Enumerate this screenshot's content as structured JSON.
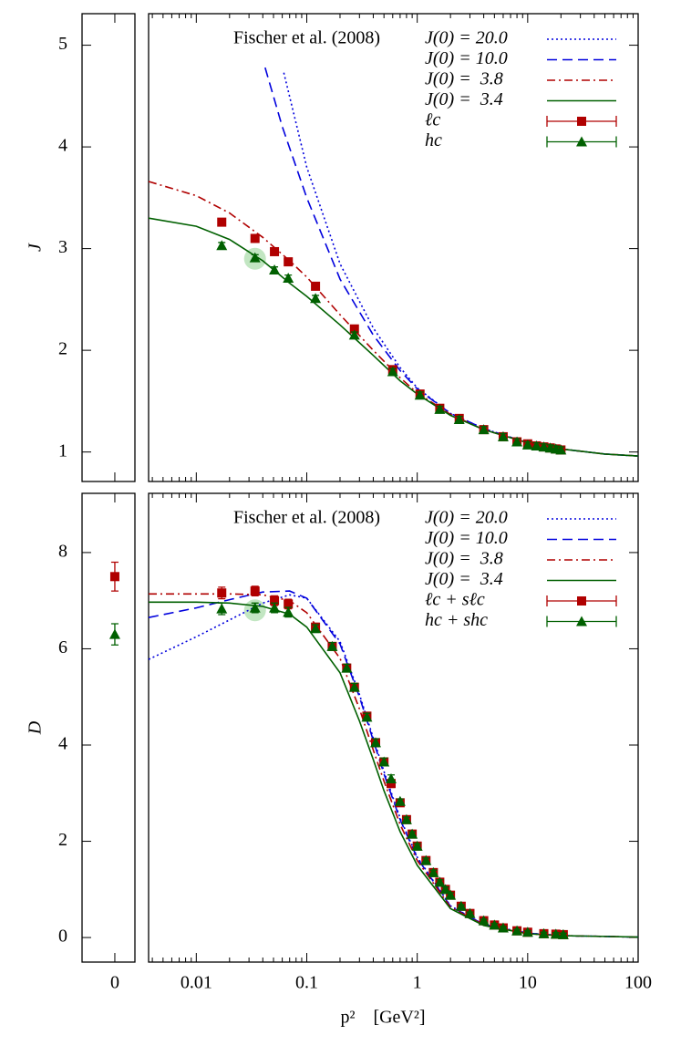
{
  "chart_data": [
    {
      "type": "line",
      "ylabel": "J",
      "legend_title": "Fischer et al. (2008)",
      "legend": "upper right",
      "xlog": true,
      "xlim": [
        0.0037,
        100
      ],
      "xticks": [
        0.01,
        0.1,
        1,
        10,
        100
      ],
      "show_xtick_labels": false,
      "x0lim": [
        -0.62,
        0.38
      ],
      "x0ticks": [
        0
      ],
      "ylim": [
        0.71,
        5.31
      ],
      "yticks": [
        1,
        2,
        3,
        4,
        5
      ],
      "highlight": {
        "x": 0.034,
        "y": 2.9,
        "color": "#a8dca8"
      },
      "series": [
        {
          "name": "J(0) = 20.0",
          "color": "#0000dd",
          "style": "dotted",
          "x": [
            0.062,
            0.1,
            0.2,
            0.4,
            0.7,
            1,
            2,
            4,
            10,
            20,
            50,
            100
          ],
          "values": [
            4.73,
            3.8,
            2.85,
            2.22,
            1.83,
            1.63,
            1.38,
            1.23,
            1.09,
            1.03,
            0.98,
            0.96
          ]
        },
        {
          "name": "J(0) = 10.0",
          "color": "#0000dd",
          "style": "dashed",
          "x": [
            0.042,
            0.06,
            0.1,
            0.2,
            0.4,
            0.7,
            1,
            2,
            4,
            10,
            20,
            50,
            100
          ],
          "values": [
            4.78,
            4.2,
            3.5,
            2.7,
            2.15,
            1.8,
            1.62,
            1.38,
            1.23,
            1.09,
            1.03,
            0.98,
            0.96
          ]
        },
        {
          "name": "J(0) =  3.8",
          "color": "#b00000",
          "style": "dashdot",
          "x": [
            0.0037,
            0.01,
            0.02,
            0.04,
            0.07,
            0.1,
            0.2,
            0.4,
            0.7,
            1,
            2,
            4,
            10,
            20,
            50,
            100
          ],
          "values": [
            3.66,
            3.52,
            3.35,
            3.11,
            2.88,
            2.72,
            2.35,
            2.0,
            1.73,
            1.58,
            1.37,
            1.22,
            1.09,
            1.03,
            0.98,
            0.96
          ]
        },
        {
          "name": "J(0) =  3.4",
          "color": "#006000",
          "style": "solid",
          "x": [
            0.0037,
            0.01,
            0.02,
            0.04,
            0.07,
            0.1,
            0.2,
            0.4,
            0.7,
            1,
            2,
            4,
            10,
            20,
            50,
            100
          ],
          "values": [
            3.3,
            3.22,
            3.09,
            2.88,
            2.66,
            2.53,
            2.25,
            1.95,
            1.7,
            1.57,
            1.36,
            1.22,
            1.09,
            1.03,
            0.98,
            0.96
          ]
        },
        {
          "name": "ℓc",
          "color": "#b00000",
          "marker": "square",
          "x": [
            0.017,
            0.034,
            0.051,
            0.068,
            0.12,
            0.27,
            0.6,
            1.06,
            1.6,
            2.4,
            4,
            6,
            8,
            10,
            12,
            14,
            16,
            18,
            20
          ],
          "values": [
            3.26,
            3.1,
            2.97,
            2.87,
            2.63,
            2.21,
            1.81,
            1.57,
            1.43,
            1.33,
            1.22,
            1.15,
            1.1,
            1.08,
            1.06,
            1.05,
            1.04,
            1.03,
            1.02
          ],
          "errors": [
            0.03,
            0.03,
            0.03,
            0.03,
            0.03,
            0.03,
            0.03,
            0.03,
            0.03,
            0.03,
            0.03,
            0.03,
            0.03,
            0.03,
            0.03,
            0.03,
            0.03,
            0.03,
            0.03
          ]
        },
        {
          "name": "hc",
          "color": "#006000",
          "marker": "triangle",
          "x": [
            0.017,
            0.034,
            0.051,
            0.068,
            0.12,
            0.27,
            0.6,
            1.06,
            1.6,
            2.4,
            4,
            6,
            8,
            10,
            12,
            14,
            16,
            18,
            20
          ],
          "values": [
            3.03,
            2.91,
            2.79,
            2.71,
            2.51,
            2.15,
            1.79,
            1.56,
            1.42,
            1.32,
            1.22,
            1.15,
            1.1,
            1.07,
            1.06,
            1.05,
            1.04,
            1.03,
            1.02
          ],
          "errors": [
            0.03,
            0.03,
            0.03,
            0.03,
            0.03,
            0.03,
            0.03,
            0.03,
            0.03,
            0.03,
            0.03,
            0.03,
            0.03,
            0.03,
            0.03,
            0.03,
            0.03,
            0.03,
            0.03
          ]
        }
      ]
    },
    {
      "type": "line",
      "ylabel": "D",
      "xlabel": "p²    [GeV²]",
      "legend_title": "Fischer et al. (2008)",
      "legend": "upper right",
      "xlog": true,
      "xlim": [
        0.0037,
        100
      ],
      "xticks": [
        0.01,
        0.1,
        1,
        10,
        100
      ],
      "show_xtick_labels": true,
      "x0lim": [
        -0.62,
        0.38
      ],
      "x0ticks": [
        0
      ],
      "ylim": [
        -0.51,
        9.23
      ],
      "yticks": [
        0,
        2,
        4,
        6,
        8
      ],
      "highlight": {
        "x": 0.034,
        "y": 6.8,
        "color": "#a8dca8"
      },
      "series": [
        {
          "name": "J(0) = 20.0",
          "color": "#0000dd",
          "style": "dotted",
          "x": [
            0.0037,
            0.01,
            0.02,
            0.04,
            0.07,
            0.1,
            0.2,
            0.3,
            0.4,
            0.5,
            0.7,
            1,
            2,
            4,
            10,
            20,
            100
          ],
          "values": [
            5.78,
            6.25,
            6.6,
            6.95,
            7.12,
            7.05,
            6.15,
            5.05,
            4.15,
            3.45,
            2.48,
            1.67,
            0.66,
            0.27,
            0.09,
            0.04,
            0.01
          ]
        },
        {
          "name": "J(0) = 10.0",
          "color": "#0000dd",
          "style": "dashed",
          "x": [
            0.0037,
            0.01,
            0.02,
            0.04,
            0.07,
            0.1,
            0.2,
            0.3,
            0.4,
            0.5,
            0.7,
            1,
            2,
            4,
            10,
            20,
            100
          ],
          "values": [
            6.65,
            6.85,
            7.02,
            7.18,
            7.2,
            7.05,
            6.1,
            5.0,
            4.1,
            3.4,
            2.45,
            1.65,
            0.65,
            0.27,
            0.09,
            0.04,
            0.01
          ]
        },
        {
          "name": "J(0) =  3.8",
          "color": "#b00000",
          "style": "dashdot",
          "x": [
            0.0037,
            0.01,
            0.02,
            0.04,
            0.07,
            0.1,
            0.2,
            0.3,
            0.4,
            0.5,
            0.7,
            1,
            2,
            4,
            10,
            20,
            100
          ],
          "values": [
            7.14,
            7.14,
            7.14,
            7.12,
            7.0,
            6.75,
            5.8,
            4.75,
            3.9,
            3.25,
            2.35,
            1.6,
            0.63,
            0.26,
            0.08,
            0.04,
            0.01
          ]
        },
        {
          "name": "J(0) =  3.4",
          "color": "#006000",
          "style": "solid",
          "x": [
            0.0037,
            0.01,
            0.02,
            0.04,
            0.07,
            0.1,
            0.2,
            0.3,
            0.4,
            0.5,
            0.7,
            1,
            2,
            4,
            10,
            20,
            100
          ],
          "values": [
            6.97,
            6.97,
            6.95,
            6.88,
            6.72,
            6.45,
            5.5,
            4.5,
            3.7,
            3.05,
            2.2,
            1.5,
            0.6,
            0.25,
            0.08,
            0.04,
            0.01
          ]
        },
        {
          "name": "ℓc + sℓc",
          "color": "#b00000",
          "marker": "square",
          "zero_value": 7.5,
          "zero_error": 0.3,
          "x": [
            0.017,
            0.034,
            0.051,
            0.068,
            0.12,
            0.17,
            0.23,
            0.27,
            0.35,
            0.42,
            0.5,
            0.58,
            0.7,
            0.8,
            0.9,
            1,
            1.2,
            1.4,
            1.6,
            1.8,
            2,
            2.5,
            3,
            4,
            5,
            6,
            8,
            10,
            14,
            18,
            21
          ],
          "values": [
            7.16,
            7.2,
            7.0,
            6.93,
            6.45,
            6.05,
            5.6,
            5.2,
            4.6,
            4.05,
            3.65,
            3.2,
            2.8,
            2.45,
            2.15,
            1.9,
            1.6,
            1.35,
            1.15,
            1.0,
            0.88,
            0.65,
            0.5,
            0.35,
            0.26,
            0.2,
            0.14,
            0.11,
            0.08,
            0.07,
            0.06
          ],
          "errors": [
            0.12,
            0.1,
            0.1,
            0.1,
            0.08,
            0.08,
            0.08,
            0.08,
            0.08,
            0.08,
            0.08,
            0.08,
            0.05,
            0.05,
            0.05,
            0.05,
            0.05,
            0.05,
            0.05,
            0.05,
            0.05,
            0.03,
            0.03,
            0.03,
            0.03,
            0.03,
            0.03,
            0.03,
            0.03,
            0.03,
            0.03
          ]
        },
        {
          "name": "hc + shc",
          "color": "#006000",
          "marker": "triangle",
          "zero_value": 6.3,
          "zero_error": 0.22,
          "x": [
            0.017,
            0.034,
            0.051,
            0.068,
            0.12,
            0.17,
            0.23,
            0.27,
            0.35,
            0.42,
            0.5,
            0.58,
            0.7,
            0.8,
            0.9,
            1,
            1.2,
            1.4,
            1.6,
            1.8,
            2,
            2.5,
            3,
            4,
            5,
            6,
            8,
            10,
            14,
            18,
            21
          ],
          "values": [
            6.83,
            6.85,
            6.85,
            6.76,
            6.42,
            6.05,
            5.6,
            5.2,
            4.58,
            4.05,
            3.65,
            3.3,
            2.83,
            2.45,
            2.15,
            1.9,
            1.6,
            1.35,
            1.15,
            1.0,
            0.88,
            0.65,
            0.5,
            0.35,
            0.26,
            0.2,
            0.14,
            0.11,
            0.08,
            0.07,
            0.06
          ],
          "errors": [
            0.12,
            0.1,
            0.1,
            0.1,
            0.08,
            0.08,
            0.08,
            0.08,
            0.08,
            0.08,
            0.08,
            0.08,
            0.05,
            0.05,
            0.05,
            0.05,
            0.05,
            0.05,
            0.05,
            0.05,
            0.05,
            0.03,
            0.03,
            0.03,
            0.03,
            0.03,
            0.03,
            0.03,
            0.03,
            0.03,
            0.03
          ]
        }
      ]
    }
  ]
}
